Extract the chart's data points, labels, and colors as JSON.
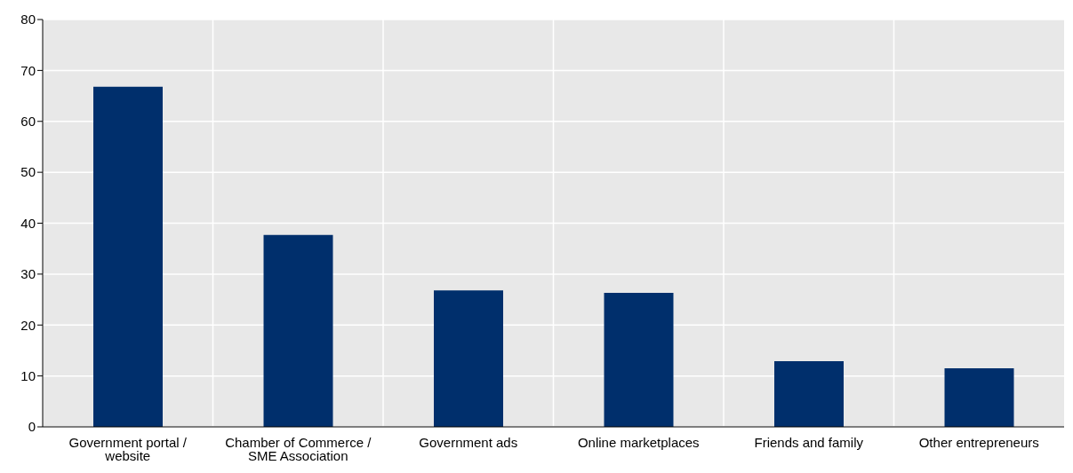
{
  "chart_data": {
    "type": "bar",
    "categories": [
      "Government portal / website",
      "Chamber of Commerce / SME Association",
      "Government ads",
      "Online marketplaces",
      "Friends and family",
      "Other entrepreneurs"
    ],
    "values": [
      66.8,
      37.7,
      26.8,
      26.3,
      12.9,
      11.5
    ],
    "color": "#002f6c",
    "ylim": [
      0,
      80
    ],
    "yticks": [
      0,
      10,
      20,
      30,
      40,
      50,
      60,
      70,
      80
    ],
    "grid": true
  }
}
